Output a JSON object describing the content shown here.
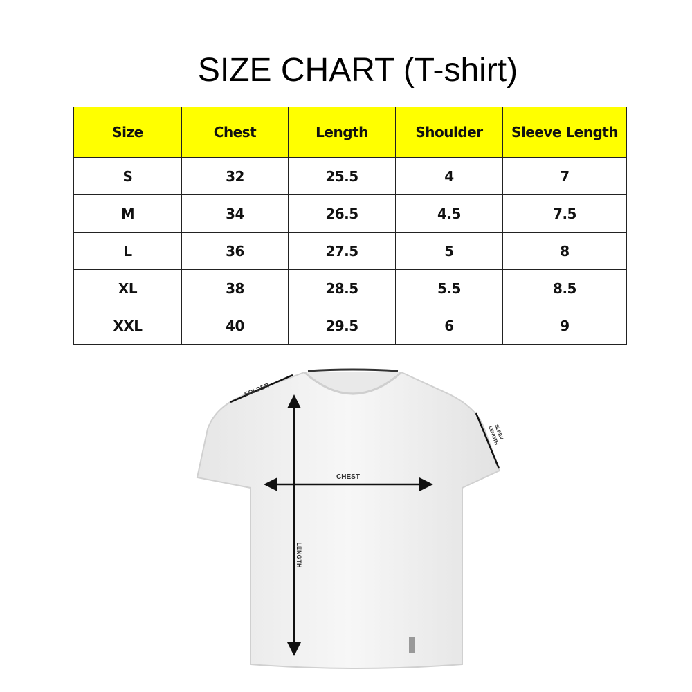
{
  "title": "SIZE CHART (T-shirt)",
  "table": {
    "header_color": "#ffff00",
    "columns": [
      "Size",
      "Chest",
      "Length",
      "Shoulder",
      "Sleeve Length"
    ],
    "rows": [
      [
        "S",
        "32",
        "25.5",
        "4",
        "7"
      ],
      [
        "M",
        "34",
        "26.5",
        "4.5",
        "7.5"
      ],
      [
        "L",
        "36",
        "27.5",
        "5",
        "8"
      ],
      [
        "XL",
        "38",
        "28.5",
        "5.5",
        "8.5"
      ],
      [
        "XXL",
        "40",
        "29.5",
        "6",
        "9"
      ]
    ]
  },
  "diagram": {
    "labels": {
      "shoulder": "SOLDER",
      "chest": "CHEST",
      "length": "LENGTH",
      "sleeve_1": "SLEEV",
      "sleeve_2": "LENGTH"
    }
  }
}
